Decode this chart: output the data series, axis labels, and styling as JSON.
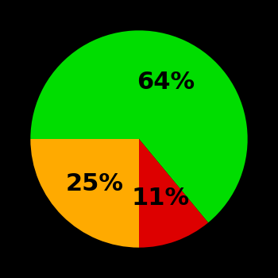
{
  "slices": [
    64,
    11,
    25
  ],
  "colors": [
    "#00dd00",
    "#dd0000",
    "#ffaa00"
  ],
  "labels": [
    "64%",
    "11%",
    "25%"
  ],
  "startangle": 180,
  "counterclock": false,
  "background_color": "#000000",
  "text_color": "#000000",
  "fontsize": 22,
  "fontweight": "bold",
  "label_r": 0.58
}
